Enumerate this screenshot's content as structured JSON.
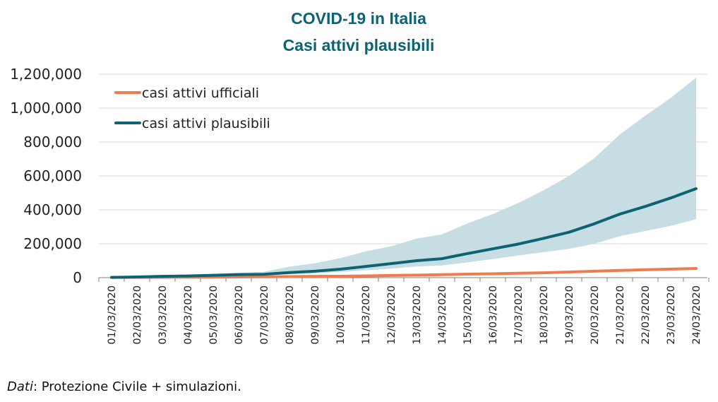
{
  "chart_data": {
    "type": "line",
    "title": "COVID-19 in Italia",
    "subtitle": "Casi attivi plausibili",
    "xlabel": "",
    "ylabel": "",
    "ylim": [
      0,
      1200000
    ],
    "yticks": [
      0,
      200000,
      400000,
      600000,
      800000,
      1000000,
      1200000
    ],
    "ytick_labels": [
      "0",
      "200,000",
      "400,000",
      "600,000",
      "800,000",
      "1,000,000",
      "1,200,000"
    ],
    "grid": true,
    "legend_position": "top-left",
    "categories": [
      "01/03/2020",
      "02/03/2020",
      "03/03/2020",
      "04/03/2020",
      "05/03/2020",
      "06/03/2020",
      "07/03/2020",
      "08/03/2020",
      "09/03/2020",
      "10/03/2020",
      "11/03/2020",
      "12/03/2020",
      "13/03/2020",
      "14/03/2020",
      "15/03/2020",
      "16/03/2020",
      "17/03/2020",
      "18/03/2020",
      "19/03/2020",
      "20/03/2020",
      "21/03/2020",
      "22/03/2020",
      "23/03/2020",
      "24/03/2020"
    ],
    "series": [
      {
        "name": "casi attivi ufficiali",
        "color": "#f07b4f",
        "values": [
          1577,
          1835,
          2263,
          2706,
          3296,
          3916,
          5061,
          6387,
          7985,
          8514,
          10590,
          12839,
          14955,
          17750,
          20603,
          23073,
          26062,
          28710,
          33190,
          37860,
          42681,
          46638,
          50418,
          54030
        ]
      },
      {
        "name": "casi attivi plausibili",
        "color": "#0b6374",
        "values": [
          1500,
          4000,
          8000,
          10000,
          14000,
          18000,
          20000,
          30000,
          38000,
          50000,
          66000,
          83000,
          100000,
          112000,
          142000,
          170000,
          198000,
          232000,
          268000,
          318000,
          375000,
          420000,
          470000,
          525000
        ]
      }
    ],
    "band": {
      "color": "#c6dde3",
      "lower": [
        1000,
        2000,
        5000,
        7000,
        9000,
        12000,
        15000,
        20000,
        26000,
        34000,
        43000,
        53000,
        66000,
        72000,
        90000,
        110000,
        130000,
        150000,
        170000,
        200000,
        245000,
        275000,
        305000,
        345000
      ],
      "upper": [
        2000,
        6000,
        12000,
        15000,
        22000,
        28000,
        35000,
        65000,
        85000,
        115000,
        155000,
        185000,
        230000,
        255000,
        320000,
        375000,
        440000,
        515000,
        600000,
        705000,
        845000,
        955000,
        1060000,
        1180000
      ]
    }
  },
  "colors": {
    "title": "#0b6374",
    "grid": "#d9d9d9",
    "axis": "#7f7f7f"
  },
  "source": {
    "label": "Dati",
    "text": ": Protezione Civile + simulazioni."
  }
}
